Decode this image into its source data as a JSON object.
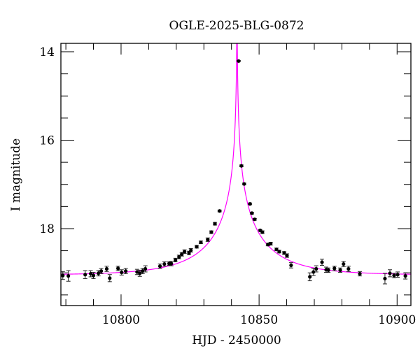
{
  "chart_data": {
    "type": "scatter",
    "title": "OGLE-2025-BLG-0872",
    "xlabel": "HJD - 2450000",
    "ylabel": "I magnitude",
    "xlim": [
      10778.2,
      10905.0
    ],
    "ylim": [
      19.74,
      13.81
    ],
    "y_inverted": true,
    "grid": false,
    "x_ticks": [
      10800,
      10850,
      10900
    ],
    "x_tick_labels": [
      "10800",
      "10850",
      "10900"
    ],
    "x_minor_step": 10,
    "y_ticks": [
      14,
      16,
      18
    ],
    "y_tick_labels": [
      "14",
      "16",
      "18"
    ],
    "y_minor_step": 0.5,
    "series": [
      {
        "kind": "data",
        "color": "#000000",
        "x": [
          10778.9,
          10780.9,
          10787.0,
          10789.0,
          10790.0,
          10791.8,
          10792.8,
          10794.8,
          10795.9,
          10798.9,
          10800.2,
          10801.7,
          10805.8,
          10806.8,
          10807.8,
          10808.8,
          10814.1,
          10815.7,
          10817.4,
          10818.2,
          10819.7,
          10821.0,
          10822.0,
          10823.0,
          10824.6,
          10825.3,
          10827.4,
          10828.9,
          10831.4,
          10832.7,
          10834.0,
          10835.7,
          10842.6,
          10843.6,
          10844.6,
          10846.7,
          10847.4,
          10848.4,
          10850.4,
          10851.2,
          10853.2,
          10854.2,
          10856.3,
          10857.3,
          10859.1,
          10860.1,
          10861.6,
          10868.4,
          10869.7,
          10870.7,
          10872.8,
          10874.3,
          10875.1,
          10877.3,
          10879.4,
          10880.6,
          10882.4,
          10886.5,
          10895.6,
          10897.4,
          10898.9,
          10900.2,
          10903.0
        ],
        "y": [
          19.06,
          19.07,
          19.04,
          19.02,
          19.06,
          19.01,
          18.96,
          18.91,
          19.12,
          18.9,
          18.99,
          18.96,
          18.98,
          19.01,
          18.96,
          18.91,
          18.85,
          18.8,
          18.79,
          18.79,
          18.71,
          18.64,
          18.58,
          18.52,
          18.55,
          18.49,
          18.41,
          18.31,
          18.25,
          18.08,
          17.89,
          17.6,
          14.21,
          16.58,
          16.99,
          17.44,
          17.65,
          17.79,
          18.04,
          18.08,
          18.36,
          18.34,
          18.47,
          18.52,
          18.55,
          18.61,
          18.83,
          19.09,
          18.98,
          18.91,
          18.76,
          18.93,
          18.94,
          18.9,
          18.94,
          18.8,
          18.91,
          19.02,
          19.13,
          19.01,
          19.06,
          19.04,
          19.07
        ],
        "err": [
          0.09,
          0.12,
          0.09,
          0.07,
          0.07,
          0.06,
          0.06,
          0.06,
          0.08,
          0.05,
          0.06,
          0.06,
          0.06,
          0.07,
          0.06,
          0.07,
          0.05,
          0.05,
          0.04,
          0.05,
          0.04,
          0.04,
          0.04,
          0.04,
          0.04,
          0.04,
          0.03,
          0.03,
          0.04,
          0.03,
          0.03,
          0.02,
          0.01,
          0.02,
          0.02,
          0.02,
          0.02,
          0.02,
          0.02,
          0.03,
          0.03,
          0.03,
          0.03,
          0.03,
          0.03,
          0.04,
          0.06,
          0.09,
          0.08,
          0.07,
          0.07,
          0.06,
          0.05,
          0.05,
          0.05,
          0.06,
          0.06,
          0.05,
          0.12,
          0.08,
          0.05,
          0.06,
          0.07
        ]
      },
      {
        "kind": "model",
        "color": "#ff00ff",
        "model": "point-lens",
        "t0": 10842.0,
        "tE": 24,
        "u0": 0.003,
        "fs": 0.65,
        "baseline_mag": 19.05
      }
    ]
  }
}
